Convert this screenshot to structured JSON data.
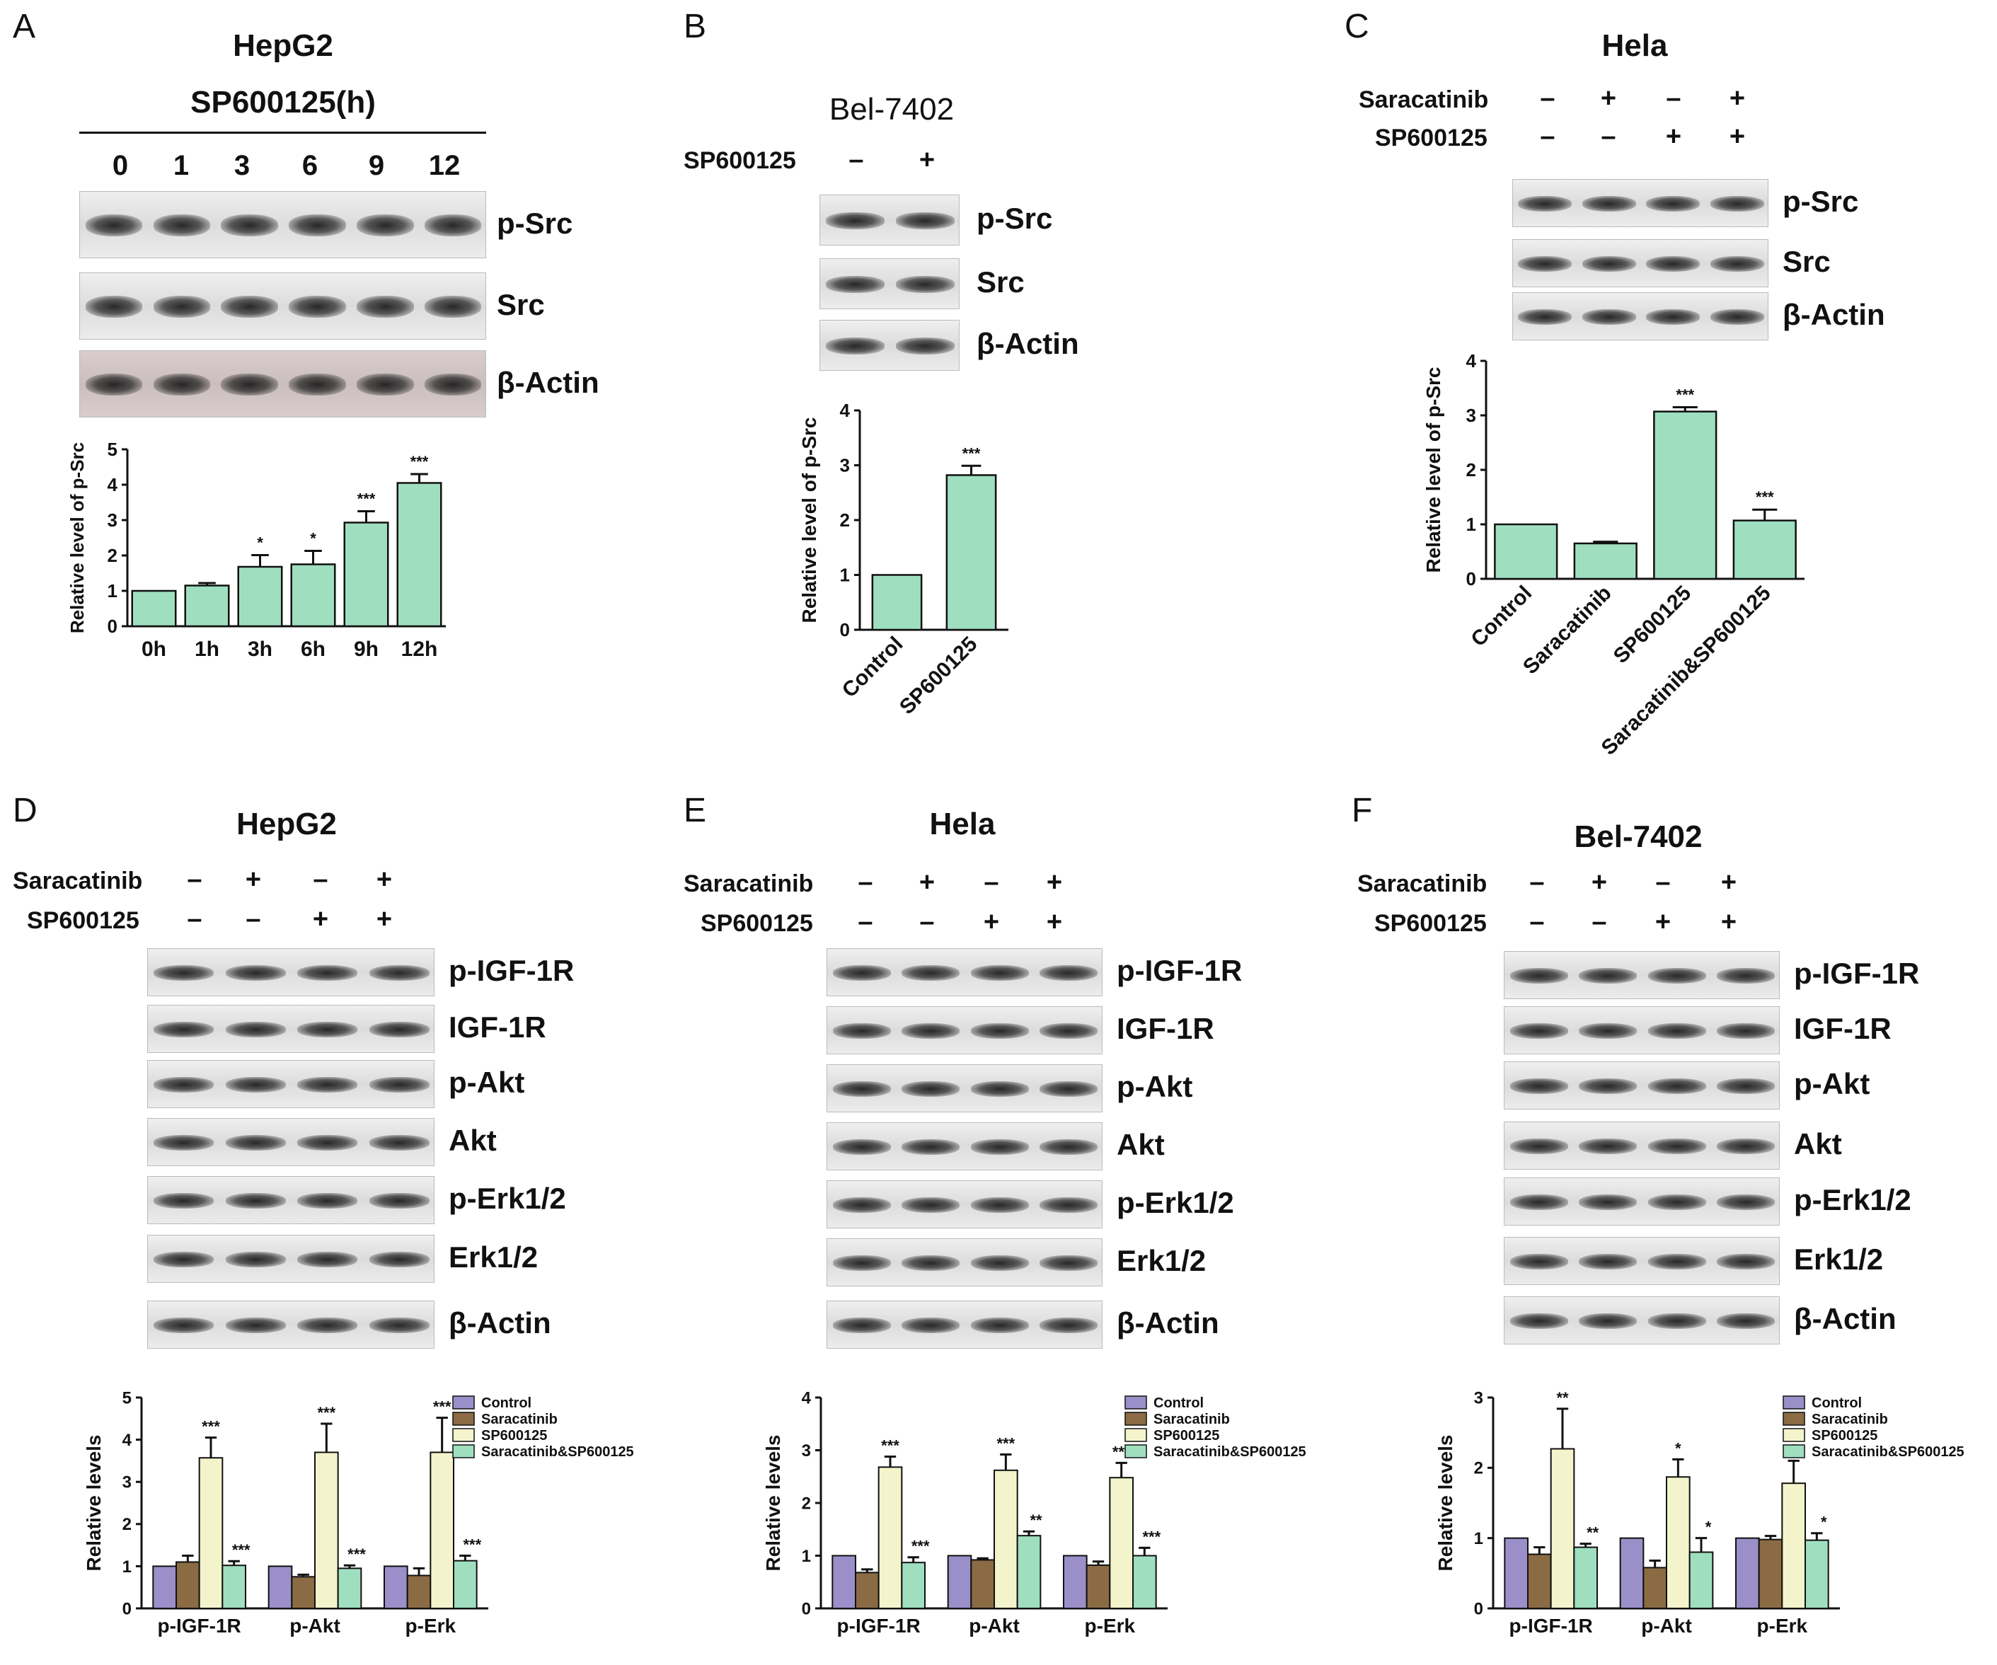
{
  "panels": [
    {
      "id": "A",
      "title": "HepG2",
      "subtitle": "SP600125(h)",
      "timepoints": [
        "0",
        "1",
        "3",
        "6",
        "9",
        "12"
      ],
      "blots": [
        "p-Src",
        "Src",
        "β-Actin"
      ]
    },
    {
      "id": "B",
      "title": "Bel-7402",
      "treatments": [
        {
          "name": "SP600125",
          "signs": [
            "–",
            "+"
          ]
        }
      ],
      "blots": [
        "p-Src",
        "Src",
        "β-Actin"
      ]
    },
    {
      "id": "C",
      "title": "Hela",
      "treatments": [
        {
          "name": "Saracatinib",
          "signs": [
            "–",
            "+",
            "–",
            "+"
          ]
        },
        {
          "name": "SP600125",
          "signs": [
            "–",
            "–",
            "+",
            "+"
          ]
        }
      ],
      "blots": [
        "p-Src",
        "Src",
        "β-Actin"
      ]
    },
    {
      "id": "D",
      "title": "HepG2",
      "treatments": [
        {
          "name": "Saracatinib",
          "signs": [
            "–",
            "+",
            "–",
            "+"
          ]
        },
        {
          "name": "SP600125",
          "signs": [
            "–",
            "–",
            "+",
            "+"
          ]
        }
      ],
      "blots": [
        "p-IGF-1R",
        "IGF-1R",
        "p-Akt",
        "Akt",
        "p-Erk1/2",
        "Erk1/2",
        "β-Actin"
      ]
    },
    {
      "id": "E",
      "title": "Hela",
      "treatments": [
        {
          "name": "Saracatinib",
          "signs": [
            "–",
            "+",
            "–",
            "+"
          ]
        },
        {
          "name": "SP600125",
          "signs": [
            "–",
            "–",
            "+",
            "+"
          ]
        }
      ],
      "blots": [
        "p-IGF-1R",
        "IGF-1R",
        "p-Akt",
        "Akt",
        "p-Erk1/2",
        "Erk1/2",
        "β-Actin"
      ]
    },
    {
      "id": "F",
      "title": "Bel-7402",
      "treatments": [
        {
          "name": "Saracatinib",
          "signs": [
            "–",
            "+",
            "–",
            "+"
          ]
        },
        {
          "name": "SP600125",
          "signs": [
            "–",
            "–",
            "+",
            "+"
          ]
        }
      ],
      "blots": [
        "p-IGF-1R",
        "IGF-1R",
        "p-Akt",
        "Akt",
        "p-Erk1/2",
        "Erk1/2",
        "β-Actin"
      ]
    }
  ],
  "legend_colors": {
    "Control": "#9b8fc9",
    "Saracatinib": "#8a6b44",
    "SP600125": "#f4f4cc",
    "Saracatinib&SP600125": "#9fdfc0"
  },
  "chart_data": [
    {
      "panel": "A",
      "type": "bar",
      "categories": [
        "0h",
        "1h",
        "3h",
        "6h",
        "9h",
        "12h"
      ],
      "values": [
        1.0,
        1.15,
        1.68,
        1.75,
        2.93,
        4.05
      ],
      "errors": [
        0,
        0.07,
        0.33,
        0.38,
        0.32,
        0.25
      ],
      "sig": [
        "",
        "",
        "*",
        "*",
        "***",
        "***"
      ],
      "ylabel": "Relative  level of p-Src",
      "ylim": [
        0,
        5
      ],
      "yticks": [
        0,
        1,
        2,
        3,
        4,
        5
      ]
    },
    {
      "panel": "B",
      "type": "bar",
      "categories": [
        "Control",
        "SP600125"
      ],
      "values": [
        1.0,
        2.82
      ],
      "errors": [
        0,
        0.17
      ],
      "sig": [
        "",
        "***"
      ],
      "ylabel": "Relative  level of p-Src",
      "ylim": [
        0,
        4
      ],
      "yticks": [
        0,
        1,
        2,
        3,
        4
      ]
    },
    {
      "panel": "C",
      "type": "bar",
      "categories": [
        "Control",
        "Saracatinib",
        "SP600125",
        "Saracatinib&SP600125"
      ],
      "values": [
        1.0,
        0.65,
        3.07,
        1.07
      ],
      "errors": [
        0,
        0.03,
        0.08,
        0.2
      ],
      "sig": [
        "",
        "",
        "***",
        "***"
      ],
      "ylabel": "Relative  level of p-Src",
      "ylim": [
        0,
        4
      ],
      "yticks": [
        0,
        1,
        2,
        3,
        4
      ]
    },
    {
      "panel": "D",
      "type": "bar",
      "categories": [
        "p-IGF-1R",
        "p-Akt",
        "p-Erk"
      ],
      "ylabel": "Relative  levels",
      "ylim": [
        0,
        5
      ],
      "yticks": [
        0,
        1,
        2,
        3,
        4,
        5
      ],
      "series": [
        {
          "name": "Control",
          "values": [
            1.0,
            1.0,
            1.0
          ],
          "errors": [
            0,
            0,
            0
          ],
          "sig": [
            "",
            "",
            ""
          ]
        },
        {
          "name": "Saracatinib",
          "values": [
            1.1,
            0.75,
            0.78
          ],
          "errors": [
            0.15,
            0.05,
            0.17
          ],
          "sig": [
            "",
            "",
            ""
          ]
        },
        {
          "name": "SP600125",
          "values": [
            3.57,
            3.7,
            3.7
          ],
          "errors": [
            0.48,
            0.68,
            0.82
          ],
          "sig": [
            "***",
            "***",
            "***"
          ]
        },
        {
          "name": "Saracatinib&SP600125",
          "values": [
            1.02,
            0.95,
            1.13
          ],
          "errors": [
            0.1,
            0.07,
            0.12
          ],
          "sig": [
            "***",
            "***",
            "***"
          ]
        }
      ]
    },
    {
      "panel": "E",
      "type": "bar",
      "categories": [
        "p-IGF-1R",
        "p-Akt",
        "p-Erk"
      ],
      "ylabel": "Relative  levels",
      "ylim": [
        0,
        4
      ],
      "yticks": [
        0,
        1,
        2,
        3,
        4
      ],
      "series": [
        {
          "name": "Control",
          "values": [
            1.0,
            1.0,
            1.0
          ],
          "errors": [
            0,
            0,
            0
          ],
          "sig": [
            "",
            "",
            ""
          ]
        },
        {
          "name": "Saracatinib",
          "values": [
            0.68,
            0.92,
            0.82
          ],
          "errors": [
            0.06,
            0.03,
            0.07
          ],
          "sig": [
            "",
            "",
            ""
          ]
        },
        {
          "name": "SP600125",
          "values": [
            2.68,
            2.62,
            2.48
          ],
          "errors": [
            0.2,
            0.3,
            0.28
          ],
          "sig": [
            "***",
            "***",
            "***"
          ]
        },
        {
          "name": "Saracatinib&SP600125",
          "values": [
            0.87,
            1.38,
            1.0
          ],
          "errors": [
            0.1,
            0.08,
            0.15
          ],
          "sig": [
            "***",
            "**",
            "***"
          ]
        }
      ]
    },
    {
      "panel": "F",
      "type": "bar",
      "categories": [
        "p-IGF-1R",
        "p-Akt",
        "p-Erk"
      ],
      "ylabel": "Relative  levels",
      "ylim": [
        0,
        3
      ],
      "yticks": [
        0,
        1,
        2,
        3
      ],
      "series": [
        {
          "name": "Control",
          "values": [
            1.0,
            1.0,
            1.0
          ],
          "errors": [
            0,
            0,
            0
          ],
          "sig": [
            "",
            "",
            ""
          ]
        },
        {
          "name": "Saracatinib",
          "values": [
            0.77,
            0.58,
            0.98
          ],
          "errors": [
            0.1,
            0.1,
            0.05
          ],
          "sig": [
            "",
            "",
            ""
          ]
        },
        {
          "name": "SP600125",
          "values": [
            2.27,
            1.87,
            1.78
          ],
          "errors": [
            0.57,
            0.25,
            0.32
          ],
          "sig": [
            "**",
            "*",
            "*"
          ]
        },
        {
          "name": "Saracatinib&SP600125",
          "values": [
            0.87,
            0.8,
            0.97
          ],
          "errors": [
            0.05,
            0.2,
            0.1
          ],
          "sig": [
            "**",
            "*",
            "*"
          ]
        }
      ]
    }
  ]
}
